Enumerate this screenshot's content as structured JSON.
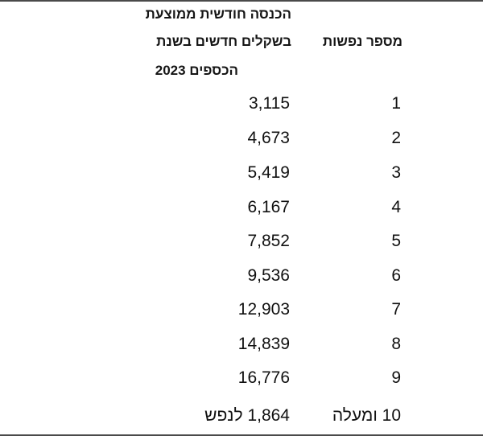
{
  "table": {
    "header_income_line1": "הכנסה חודשית ממוצעת",
    "header_income_line2": "בשקלים חדשים בשנת",
    "header_income_line3": "הכספים 2023",
    "header_people": "מספר נפשות",
    "rows": [
      {
        "people": "1",
        "income": "3,115"
      },
      {
        "people": "2",
        "income": "4,673"
      },
      {
        "people": "3",
        "income": "5,419"
      },
      {
        "people": "4",
        "income": "6,167"
      },
      {
        "people": "5",
        "income": "7,852"
      },
      {
        "people": "6",
        "income": "9,536"
      },
      {
        "people": "7",
        "income": "12,903"
      },
      {
        "people": "8",
        "income": "14,839"
      },
      {
        "people": "9",
        "income": "16,776"
      },
      {
        "people": "10 ומעלה",
        "income": "1,864 לנפש"
      }
    ]
  }
}
